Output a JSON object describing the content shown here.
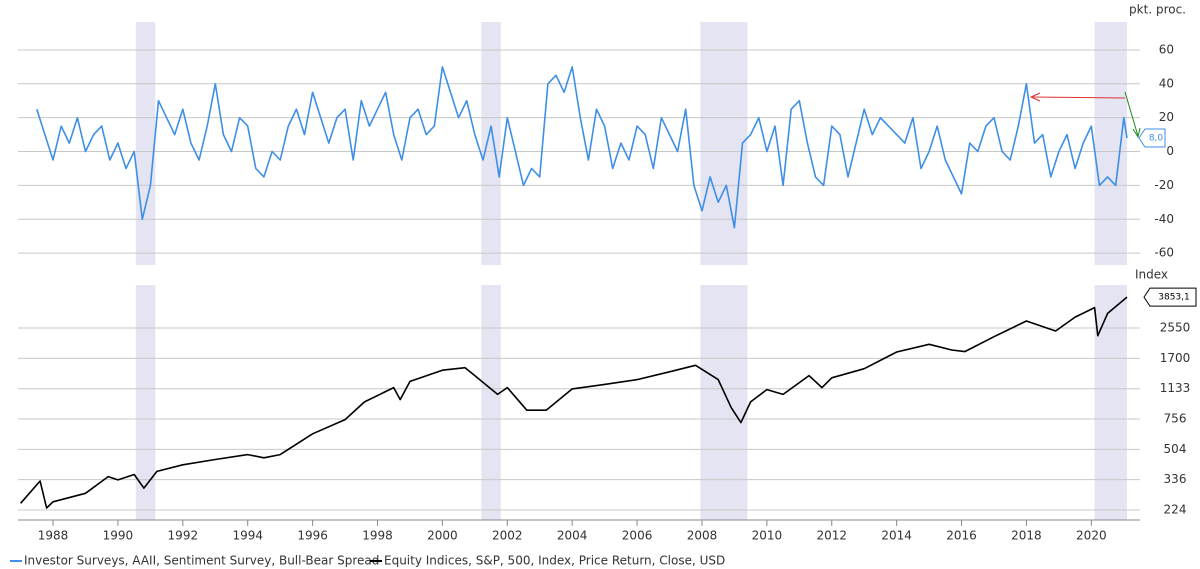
{
  "chart_data": [
    {
      "type": "line",
      "y_axis_label": "pkt. proc.",
      "xlim": [
        1986.92,
        2021.5
      ],
      "ylim": [
        -67,
        76.5
      ],
      "yticks": [
        -60,
        -40,
        -20,
        0,
        20,
        40,
        60
      ],
      "grid": true,
      "log_scale": false,
      "shaded_ranges": [
        [
          1990.55,
          1991.15
        ],
        [
          2001.2,
          2001.8
        ],
        [
          2007.95,
          2009.4
        ],
        [
          2020.1,
          2021.1
        ]
      ],
      "last_value_label": "8,0",
      "series": [
        {
          "name": "Investor Surveys, AAII, Sentiment Survey, Bull-Bear Spread",
          "color": "#3d8fe8",
          "x": [
            1987.5,
            1987.75,
            1988,
            1988.25,
            1988.5,
            1988.75,
            1989,
            1989.25,
            1989.5,
            1989.75,
            1990,
            1990.25,
            1990.5,
            1990.75,
            1991,
            1991.25,
            1991.5,
            1991.75,
            1992,
            1992.25,
            1992.5,
            1992.75,
            1993,
            1993.25,
            1993.5,
            1993.75,
            1994,
            1994.25,
            1994.5,
            1994.75,
            1995,
            1995.25,
            1995.5,
            1995.75,
            1996,
            1996.25,
            1996.5,
            1996.75,
            1997,
            1997.25,
            1997.5,
            1997.75,
            1998,
            1998.25,
            1998.5,
            1998.75,
            1999,
            1999.25,
            1999.5,
            1999.75,
            2000,
            2000.25,
            2000.5,
            2000.75,
            2001,
            2001.25,
            2001.5,
            2001.75,
            2002,
            2002.25,
            2002.5,
            2002.75,
            2003,
            2003.25,
            2003.5,
            2003.75,
            2004,
            2004.25,
            2004.5,
            2004.75,
            2005,
            2005.25,
            2005.5,
            2005.75,
            2006,
            2006.25,
            2006.5,
            2006.75,
            2007,
            2007.25,
            2007.5,
            2007.75,
            2008,
            2008.25,
            2008.5,
            2008.75,
            2009,
            2009.25,
            2009.5,
            2009.75,
            2010,
            2010.25,
            2010.5,
            2010.75,
            2011,
            2011.25,
            2011.5,
            2011.75,
            2012,
            2012.25,
            2012.5,
            2012.75,
            2013,
            2013.25,
            2013.5,
            2013.75,
            2014,
            2014.25,
            2014.5,
            2014.75,
            2015,
            2015.25,
            2015.5,
            2015.75,
            2016,
            2016.25,
            2016.5,
            2016.75,
            2017,
            2017.25,
            2017.5,
            2017.75,
            2018,
            2018.25,
            2018.5,
            2018.75,
            2019,
            2019.25,
            2019.5,
            2019.75,
            2020,
            2020.25,
            2020.5,
            2020.75,
            2021,
            2021.1
          ],
          "values": [
            25,
            10,
            -5,
            15,
            5,
            20,
            0,
            10,
            15,
            -5,
            5,
            -10,
            0,
            -40,
            -20,
            30,
            20,
            10,
            25,
            5,
            -5,
            15,
            40,
            10,
            0,
            20,
            15,
            -10,
            -15,
            0,
            -5,
            15,
            25,
            10,
            35,
            20,
            5,
            20,
            25,
            -5,
            30,
            15,
            25,
            35,
            10,
            -5,
            20,
            25,
            10,
            15,
            50,
            35,
            20,
            30,
            10,
            -5,
            15,
            -15,
            20,
            0,
            -20,
            -10,
            -15,
            40,
            45,
            35,
            50,
            20,
            -5,
            25,
            15,
            -10,
            5,
            -5,
            15,
            10,
            -10,
            20,
            10,
            0,
            25,
            -20,
            -35,
            -15,
            -30,
            -20,
            -45,
            5,
            10,
            20,
            0,
            15,
            -20,
            25,
            30,
            5,
            -15,
            -20,
            15,
            10,
            -15,
            5,
            25,
            10,
            20,
            15,
            10,
            5,
            20,
            -10,
            0,
            15,
            -5,
            -15,
            -25,
            5,
            0,
            15,
            20,
            0,
            -5,
            15,
            40,
            5,
            10,
            -15,
            0,
            10,
            -10,
            5,
            15,
            -20,
            -15,
            -20,
            20,
            8
          ]
        }
      ]
    },
    {
      "type": "line",
      "y_axis_label": "Index",
      "xlim": [
        1986.92,
        2021.5
      ],
      "ylim": [
        196,
        4530
      ],
      "yticks": [
        224,
        336,
        504,
        756,
        1133,
        1700,
        2550
      ],
      "grid": true,
      "log_scale": true,
      "xticks": [
        1988,
        1990,
        1992,
        1994,
        1996,
        1998,
        2000,
        2002,
        2004,
        2006,
        2008,
        2010,
        2012,
        2014,
        2016,
        2018,
        2020
      ],
      "shaded_ranges": [
        [
          1990.55,
          1991.15
        ],
        [
          2001.2,
          2001.8
        ],
        [
          2007.95,
          2009.4
        ],
        [
          2020.1,
          2021.1
        ]
      ],
      "last_value_label": "3853,1",
      "series": [
        {
          "name": "Equity Indices, S&P, 500, Index, Price Return, Close, USD",
          "color": "#000000",
          "x": [
            1987,
            1987.6,
            1987.8,
            1988,
            1989,
            1989.7,
            1990,
            1990.5,
            1990.8,
            1991.2,
            1992,
            1993,
            1994,
            1994.5,
            1995,
            1996,
            1997,
            1997.6,
            1998.5,
            1998.7,
            1999,
            2000,
            2000.7,
            2001,
            2001.7,
            2002,
            2002.6,
            2003.2,
            2004,
            2005,
            2006,
            2007,
            2007.8,
            2008.5,
            2008.9,
            2009.2,
            2009.5,
            2010,
            2010.5,
            2011.3,
            2011.7,
            2012,
            2013,
            2014,
            2015,
            2015.7,
            2016.1,
            2017,
            2018,
            2018.9,
            2019.5,
            2020.1,
            2020.2,
            2020.5,
            2021.1
          ],
          "values": [
            245,
            330,
            230,
            250,
            280,
            350,
            335,
            360,
            300,
            375,
            410,
            440,
            470,
            450,
            470,
            620,
            750,
            950,
            1150,
            980,
            1250,
            1450,
            1500,
            1350,
            1050,
            1150,
            850,
            850,
            1130,
            1200,
            1280,
            1420,
            1550,
            1280,
            880,
            720,
            950,
            1120,
            1050,
            1350,
            1150,
            1310,
            1480,
            1850,
            2050,
            1900,
            1860,
            2270,
            2800,
            2450,
            2950,
            3350,
            2300,
            3100,
            3853.1
          ]
        }
      ]
    }
  ]
}
